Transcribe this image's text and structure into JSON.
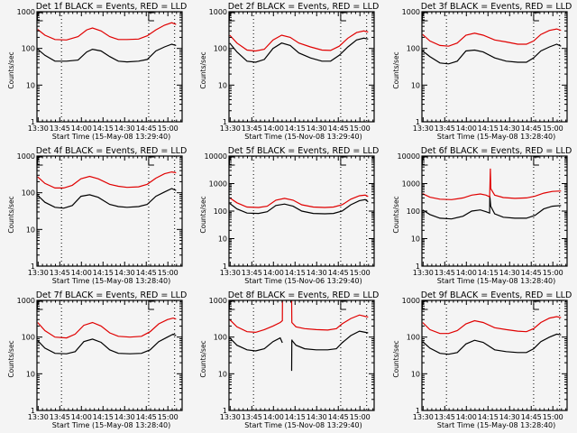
{
  "figure": {
    "background": "#f4f4f4",
    "colors": {
      "events": "#000000",
      "lld": "#e00000",
      "frame": "#000000"
    }
  },
  "chart_data": [
    {
      "type": "line",
      "title": "Det 1f BLACK = Events, RED = LLD",
      "xlabel": "Start Time (15-May-08 13:29:40)",
      "ylabel": "Counts/sec",
      "ylim": [
        1,
        1000
      ],
      "yscale": "log",
      "yticks": [
        "1",
        "10",
        "100",
        "1000"
      ],
      "xlim_minutes": [
        13.5,
        110
      ],
      "xticks": [
        "13:30",
        "13:45",
        "14:00",
        "14:15",
        "14:30",
        "14:45",
        "15:00"
      ],
      "xtick_minutes": [
        0.33,
        15.33,
        30.33,
        45.33,
        60.33,
        75.33,
        90.33
      ],
      "vlines_minutes": [
        16.5,
        77,
        95
      ],
      "series": [
        {
          "name": "Events",
          "color": "#000000",
          "x": [
            0,
            5,
            12,
            20,
            28,
            34,
            38,
            44,
            50,
            56,
            62,
            70,
            76,
            82,
            88,
            93,
            96
          ],
          "y": [
            95,
            65,
            45,
            45,
            48,
            80,
            95,
            85,
            60,
            45,
            43,
            45,
            50,
            85,
            110,
            130,
            120
          ]
        },
        {
          "name": "LLD",
          "color": "#e00000",
          "x": [
            0,
            5,
            12,
            20,
            28,
            34,
            38,
            44,
            50,
            56,
            62,
            70,
            76,
            82,
            88,
            93,
            96
          ],
          "y": [
            330,
            230,
            175,
            170,
            210,
            320,
            360,
            300,
            210,
            175,
            175,
            180,
            220,
            320,
            430,
            500,
            450
          ]
        }
      ]
    },
    {
      "type": "line",
      "title": "Det 2f BLACK = Events, RED = LLD",
      "xlabel": "Start Time (15-Nov-08 13:29:40)",
      "ylabel": "Counts/sec",
      "ylim": [
        1,
        1000
      ],
      "yscale": "log",
      "yticks": [
        "1",
        "10",
        "100",
        "1000"
      ],
      "xlim_minutes": [
        13.5,
        110
      ],
      "xticks": [
        "13:30",
        "13:45",
        "14:00",
        "14:15",
        "14:30",
        "14:45",
        "15:00"
      ],
      "xtick_minutes": [
        0.33,
        15.33,
        30.33,
        45.33,
        60.33,
        75.33,
        90.33
      ],
      "vlines_minutes": [
        16.5,
        77,
        95
      ],
      "series": [
        {
          "name": "Events",
          "color": "#000000",
          "x": [
            0,
            5,
            12,
            18,
            24,
            30,
            36,
            42,
            48,
            56,
            64,
            70,
            76,
            82,
            88,
            93,
            96
          ],
          "y": [
            140,
            80,
            45,
            42,
            50,
            100,
            140,
            120,
            75,
            55,
            45,
            45,
            65,
            110,
            170,
            190,
            180
          ]
        },
        {
          "name": "LLD",
          "color": "#e00000",
          "x": [
            0,
            5,
            12,
            18,
            24,
            30,
            36,
            42,
            48,
            56,
            64,
            70,
            76,
            82,
            88,
            93,
            96
          ],
          "y": [
            230,
            140,
            90,
            85,
            95,
            170,
            230,
            200,
            140,
            110,
            90,
            88,
            115,
            190,
            270,
            300,
            280
          ]
        }
      ]
    },
    {
      "type": "line",
      "title": "Det 3f BLACK = Events, RED = LLD",
      "xlabel": "Start Time (15-May-08 13:28:40)",
      "ylabel": "Counts/sec",
      "ylim": [
        1,
        1000
      ],
      "yscale": "log",
      "yticks": [
        "1",
        "10",
        "100",
        "1000"
      ],
      "xlim_minutes": [
        13.5,
        110
      ],
      "xticks": [
        "13:30",
        "13:45",
        "14:00",
        "14:15",
        "14:30",
        "14:45",
        "15:00"
      ],
      "xtick_minutes": [
        0.33,
        15.33,
        30.33,
        45.33,
        60.33,
        75.33,
        90.33
      ],
      "vlines_minutes": [
        16.5,
        77,
        95
      ],
      "series": [
        {
          "name": "Events",
          "color": "#000000",
          "x": [
            0,
            5,
            12,
            18,
            24,
            30,
            36,
            42,
            50,
            58,
            66,
            72,
            77,
            82,
            88,
            93,
            96
          ],
          "y": [
            85,
            60,
            40,
            38,
            45,
            85,
            90,
            80,
            55,
            45,
            42,
            42,
            55,
            85,
            110,
            130,
            115
          ]
        },
        {
          "name": "LLD",
          "color": "#e00000",
          "x": [
            0,
            5,
            12,
            18,
            24,
            30,
            36,
            42,
            50,
            58,
            66,
            72,
            77,
            82,
            88,
            93,
            96
          ],
          "y": [
            240,
            160,
            120,
            115,
            140,
            230,
            260,
            230,
            170,
            150,
            130,
            130,
            160,
            240,
            310,
            340,
            310
          ]
        }
      ]
    },
    {
      "type": "line",
      "title": "Det 4f BLACK = Events, RED = LLD",
      "xlabel": "Start Time (15-May-08 13:28:40)",
      "ylabel": "Counts/sec",
      "ylim": [
        1,
        1000
      ],
      "yscale": "log",
      "yticks": [
        "1",
        "10",
        "100",
        "1000"
      ],
      "xlim_minutes": [
        13.5,
        110
      ],
      "xticks": [
        "13:30",
        "13:45",
        "14:00",
        "14:15",
        "14:30",
        "14:45",
        "15:00"
      ],
      "xtick_minutes": [
        0.33,
        15.33,
        30.33,
        45.33,
        60.33,
        75.33,
        90.33
      ],
      "vlines_minutes": [
        16.5,
        77,
        95
      ],
      "series": [
        {
          "name": "Events",
          "color": "#000000",
          "x": [
            0,
            5,
            12,
            18,
            24,
            30,
            36,
            42,
            50,
            56,
            62,
            70,
            76,
            82,
            88,
            93,
            96
          ],
          "y": [
            85,
            55,
            40,
            38,
            45,
            80,
            88,
            75,
            48,
            42,
            40,
            42,
            48,
            80,
            105,
            130,
            115
          ]
        },
        {
          "name": "LLD",
          "color": "#e00000",
          "x": [
            0,
            5,
            12,
            18,
            24,
            30,
            36,
            42,
            50,
            56,
            62,
            70,
            76,
            82,
            88,
            93,
            96
          ],
          "y": [
            270,
            180,
            135,
            135,
            160,
            240,
            280,
            240,
            170,
            150,
            140,
            145,
            170,
            250,
            330,
            370,
            350
          ]
        }
      ]
    },
    {
      "type": "line",
      "title": "Det 5f BLACK = Events, RED = LLD",
      "xlabel": "Start Time (15-Nov-06 13:29:40)",
      "ylabel": "Counts/sec",
      "ylim": [
        1,
        10000
      ],
      "yscale": "log",
      "yticks": [
        "1",
        "10",
        "100",
        "1000",
        "10000"
      ],
      "xlim_minutes": [
        13.5,
        110
      ],
      "xticks": [
        "13:30",
        "13:45",
        "14:00",
        "14:15",
        "14:30",
        "14:45",
        "15:00"
      ],
      "xtick_minutes": [
        0.33,
        15.33,
        30.33,
        45.33,
        60.33,
        75.33,
        90.33
      ],
      "vlines_minutes": [
        16.5,
        77,
        95
      ],
      "series": [
        {
          "name": "Events",
          "color": "#000000",
          "x": [
            0,
            5,
            12,
            20,
            26,
            32,
            38,
            44,
            50,
            58,
            66,
            72,
            78,
            84,
            90,
            94,
            96
          ],
          "y": [
            190,
            120,
            85,
            82,
            95,
            160,
            180,
            150,
            100,
            82,
            80,
            82,
            100,
            170,
            240,
            260,
            220
          ]
        },
        {
          "name": "LLD",
          "color": "#e00000",
          "x": [
            0,
            5,
            12,
            20,
            26,
            32,
            38,
            44,
            50,
            58,
            66,
            72,
            78,
            84,
            90,
            94,
            96
          ],
          "y": [
            300,
            200,
            140,
            135,
            150,
            250,
            290,
            250,
            170,
            140,
            135,
            140,
            170,
            270,
            360,
            380,
            340
          ]
        }
      ]
    },
    {
      "type": "line",
      "title": "Det 6f BLACK = Events, RED = LLD",
      "xlabel": "Start Time (15-May-08 13:28:40)",
      "ylabel": "Counts/sec",
      "ylim": [
        1,
        10000
      ],
      "yscale": "log",
      "yticks": [
        "1",
        "10",
        "100",
        "1000",
        "10000"
      ],
      "xlim_minutes": [
        13.5,
        110
      ],
      "xticks": [
        "13:30",
        "13:45",
        "14:00",
        "14:15",
        "14:30",
        "14:45",
        "15:00"
      ],
      "xtick_minutes": [
        0.33,
        15.33,
        30.33,
        45.33,
        60.33,
        75.33,
        90.33
      ],
      "vlines_minutes": [
        16.5,
        77,
        95
      ],
      "series": [
        {
          "name": "Events",
          "color": "#000000",
          "x": [
            0,
            5,
            12,
            20,
            28,
            34,
            40,
            44,
            46.5,
            46.6,
            47.2,
            50,
            56,
            64,
            72,
            78,
            84,
            90,
            96
          ],
          "y": [
            110,
            75,
            55,
            52,
            65,
            100,
            110,
            95,
            85,
            350,
            150,
            80,
            60,
            55,
            55,
            70,
            120,
            150,
            160
          ]
        },
        {
          "name": "LLD",
          "color": "#e00000",
          "x": [
            0,
            5,
            12,
            20,
            28,
            34,
            40,
            44,
            46.5,
            46.7,
            47.0,
            47.3,
            50,
            56,
            64,
            72,
            78,
            84,
            90,
            96
          ],
          "y": [
            430,
            320,
            270,
            260,
            300,
            380,
            420,
            380,
            330,
            1000,
            3500,
            650,
            380,
            310,
            290,
            300,
            350,
            450,
            520,
            540
          ]
        }
      ]
    },
    {
      "type": "line",
      "title": "Det 7f BLACK = Events, RED = LLD",
      "xlabel": "Start Time (15-May-08 13:28:40)",
      "ylabel": "Counts/sec",
      "ylim": [
        1,
        1000
      ],
      "yscale": "log",
      "yticks": [
        "1",
        "10",
        "100",
        "1000"
      ],
      "xlim_minutes": [
        13.5,
        110
      ],
      "xticks": [
        "13:30",
        "13:45",
        "14:00",
        "14:15",
        "14:30",
        "14:45",
        "15:00"
      ],
      "xtick_minutes": [
        0.33,
        15.33,
        30.33,
        45.33,
        60.33,
        75.33,
        90.33
      ],
      "vlines_minutes": [
        16.5,
        77,
        95
      ],
      "series": [
        {
          "name": "Events",
          "color": "#000000",
          "x": [
            0,
            5,
            12,
            20,
            26,
            32,
            38,
            44,
            50,
            56,
            64,
            72,
            78,
            84,
            90,
            94,
            96
          ],
          "y": [
            80,
            50,
            36,
            35,
            40,
            75,
            88,
            72,
            45,
            36,
            35,
            36,
            45,
            75,
            100,
            120,
            110
          ]
        },
        {
          "name": "LLD",
          "color": "#e00000",
          "x": [
            0,
            5,
            12,
            20,
            26,
            32,
            38,
            44,
            50,
            56,
            64,
            72,
            78,
            84,
            90,
            94,
            96
          ],
          "y": [
            250,
            150,
            100,
            95,
            120,
            210,
            250,
            200,
            130,
            105,
            100,
            105,
            140,
            230,
            300,
            330,
            310
          ]
        }
      ]
    },
    {
      "type": "line",
      "title": "Det 8f BLACK = Events, RED = LLD",
      "xlabel": "Start Time (15-Nov-08 13:29:40)",
      "ylabel": "Counts/sec",
      "ylim": [
        1,
        1000
      ],
      "yscale": "log",
      "yticks": [
        "1",
        "10",
        "100",
        "1000"
      ],
      "xlim_minutes": [
        13.5,
        110
      ],
      "xticks": [
        "13:30",
        "13:45",
        "14:00",
        "14:15",
        "14:30",
        "14:45",
        "15:00"
      ],
      "xtick_minutes": [
        0.33,
        15.33,
        30.33,
        45.33,
        60.33,
        75.33,
        90.33
      ],
      "vlines_minutes": [
        16.5,
        77,
        95
      ],
      "series": [
        {
          "name": "Events",
          "color": "#000000",
          "x": [
            0,
            5,
            12,
            18,
            24,
            30,
            35,
            36.5,
            null,
            43,
            43.1,
            43.3,
            46,
            52,
            60,
            68,
            74,
            78,
            84,
            90,
            96
          ],
          "y": [
            95,
            60,
            45,
            42,
            48,
            75,
            95,
            70,
            null,
            12,
            85,
            80,
            60,
            48,
            45,
            45,
            48,
            70,
            110,
            145,
            130
          ]
        },
        {
          "name": "LLD",
          "color": "#e00000",
          "x": [
            0,
            5,
            12,
            18,
            24,
            30,
            35,
            36.5,
            36.6,
            null,
            43,
            43.1,
            46,
            52,
            60,
            68,
            74,
            78,
            84,
            90,
            96
          ],
          "y": [
            300,
            190,
            140,
            135,
            160,
            200,
            250,
            280,
            1000,
            null,
            1000,
            250,
            190,
            170,
            160,
            155,
            170,
            230,
            320,
            400,
            350
          ]
        }
      ]
    },
    {
      "type": "line",
      "title": "Det 9f BLACK = Events, RED = LLD",
      "xlabel": "Start Time (15-May-08 13:28:40)",
      "ylabel": "Counts/sec",
      "ylim": [
        1,
        1000
      ],
      "yscale": "log",
      "yticks": [
        "1",
        "10",
        "100",
        "1000"
      ],
      "xlim_minutes": [
        13.5,
        110
      ],
      "xticks": [
        "13:30",
        "13:45",
        "14:00",
        "14:15",
        "14:30",
        "14:45",
        "15:00"
      ],
      "xtick_minutes": [
        0.33,
        15.33,
        30.33,
        45.33,
        60.33,
        75.33,
        90.33
      ],
      "vlines_minutes": [
        16.5,
        77,
        95
      ],
      "series": [
        {
          "name": "Events",
          "color": "#000000",
          "x": [
            0,
            5,
            12,
            18,
            24,
            30,
            36,
            42,
            50,
            58,
            66,
            72,
            77,
            82,
            88,
            93,
            96
          ],
          "y": [
            75,
            50,
            36,
            34,
            38,
            65,
            82,
            72,
            45,
            40,
            38,
            38,
            48,
            75,
            100,
            120,
            115
          ]
        },
        {
          "name": "LLD",
          "color": "#e00000",
          "x": [
            0,
            5,
            12,
            18,
            24,
            30,
            36,
            42,
            50,
            58,
            66,
            72,
            77,
            82,
            88,
            93,
            96
          ],
          "y": [
            250,
            160,
            125,
            125,
            150,
            230,
            280,
            250,
            180,
            160,
            145,
            140,
            170,
            250,
            330,
            360,
            340
          ]
        }
      ]
    }
  ]
}
